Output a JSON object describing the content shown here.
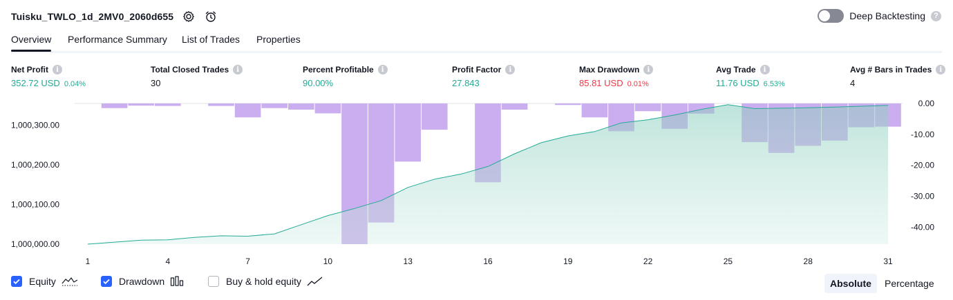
{
  "header": {
    "title": "Tuisku_TWLO_1d_2MV0_2060d655",
    "settings_icon": "gear-icon",
    "replay_icon": "alarm-add-icon"
  },
  "deep_backtesting": {
    "label": "Deep Backtesting",
    "enabled": false
  },
  "tabs": [
    {
      "label": "Overview",
      "active": true
    },
    {
      "label": "Performance Summary",
      "active": false
    },
    {
      "label": "List of Trades",
      "active": false
    },
    {
      "label": "Properties",
      "active": false
    }
  ],
  "metrics": [
    {
      "label": "Net Profit",
      "value": "352.72 USD",
      "sub": "0.04%",
      "color": "green"
    },
    {
      "label": "Total Closed Trades",
      "value": "30",
      "sub": "",
      "color": "dark"
    },
    {
      "label": "Percent Profitable",
      "value": "90.00%",
      "sub": "",
      "color": "green"
    },
    {
      "label": "Profit Factor",
      "value": "27.843",
      "sub": "",
      "color": "green"
    },
    {
      "label": "Max Drawdown",
      "value": "85.81 USD",
      "sub": "0.01%",
      "color": "red"
    },
    {
      "label": "Avg Trade",
      "value": "11.76 USD",
      "sub": "6.53%",
      "color": "green"
    },
    {
      "label": "Avg # Bars in Trades",
      "value": "4",
      "sub": "",
      "color": "dark"
    }
  ],
  "chart_data": {
    "type": "area",
    "x": [
      1,
      2,
      3,
      4,
      5,
      6,
      7,
      8,
      9,
      10,
      11,
      12,
      13,
      14,
      15,
      16,
      17,
      18,
      19,
      20,
      21,
      22,
      23,
      24,
      25,
      26,
      27,
      28,
      29,
      30,
      31
    ],
    "x_ticks": [
      "1",
      "4",
      "7",
      "10",
      "13",
      "16",
      "19",
      "22",
      "25",
      "28",
      "31"
    ],
    "y_left_ticks": [
      "1,000,000.00",
      "1,000,100.00",
      "1,000,200.00",
      "1,000,300.00"
    ],
    "y_right_ticks": [
      "0.00",
      "-10.00",
      "-20.00",
      "-30.00",
      "-40.00"
    ],
    "ylim_left": [
      1000000,
      1000355
    ],
    "ylim_right": [
      -45.5,
      0
    ],
    "series": [
      {
        "name": "Equity",
        "values": [
          1000000,
          1000005,
          1000010,
          1000011,
          1000017,
          1000021,
          1000020,
          1000026,
          1000049,
          1000072,
          1000090,
          1000110,
          1000143,
          1000164,
          1000177,
          1000196,
          1000228,
          1000256,
          1000273,
          1000284,
          1000306,
          1000314,
          1000326,
          1000340,
          1000352,
          1000342,
          1000343,
          1000344,
          1000346,
          1000348,
          1000350
        ],
        "color": "#22ab94"
      },
      {
        "name": "Drawdown",
        "values": [
          0,
          -1.5,
          -0.7,
          -0.8,
          0,
          -0.8,
          -4.5,
          -1.5,
          -2,
          -3.2,
          -45.5,
          -38.5,
          -18.8,
          -8.5,
          0,
          -25.5,
          -2,
          0,
          -0.5,
          -4.5,
          -9,
          -2.5,
          -8.2,
          -3.3,
          0,
          -12.5,
          -16,
          -13.7,
          -12,
          -7.7,
          -7.5
        ],
        "color": "#ce93d8"
      }
    ]
  },
  "legend": [
    {
      "label": "Equity",
      "checked": true,
      "icon": "area-chart-icon"
    },
    {
      "label": "Drawdown",
      "checked": true,
      "icon": "bar-chart-icon"
    },
    {
      "label": "Buy & hold equity",
      "checked": false,
      "icon": "line-chart-icon"
    }
  ],
  "modes": {
    "absolute": "Absolute",
    "percentage": "Percentage",
    "active": "absolute"
  }
}
